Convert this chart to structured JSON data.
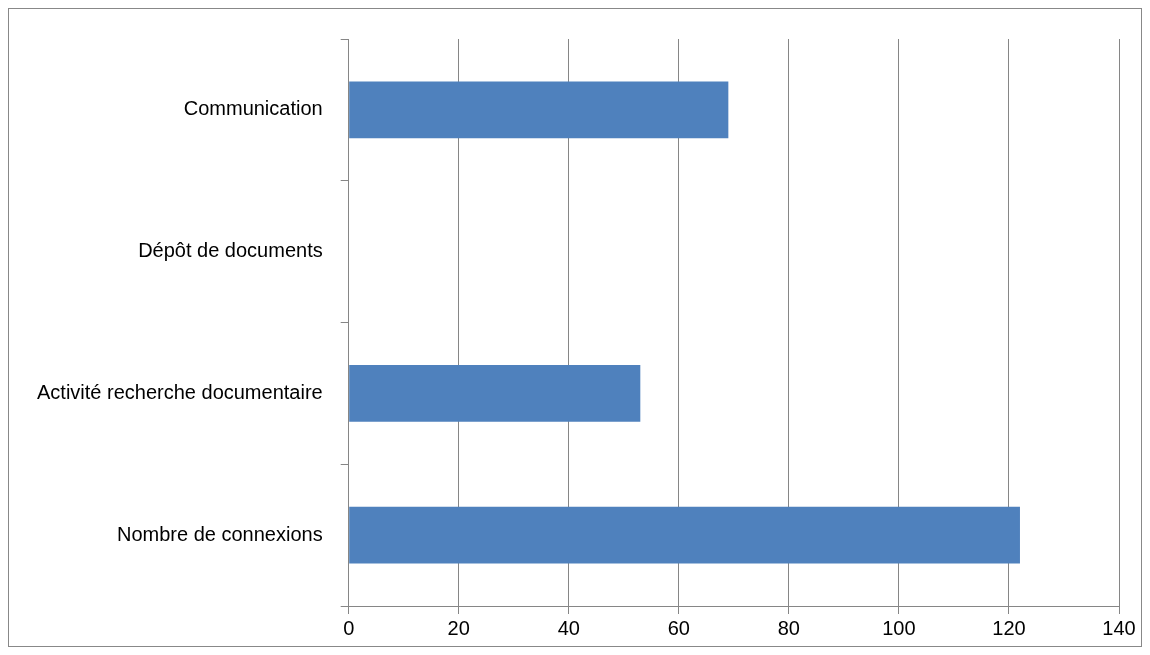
{
  "chart_data": {
    "type": "bar",
    "orientation": "horizontal",
    "categories": [
      "Communication",
      "Dépôt de documents",
      "Activité recherche documentaire",
      "Nombre de connexions"
    ],
    "values": [
      69,
      0,
      53,
      122
    ],
    "color": "#4f81bd",
    "xlim": [
      0,
      140
    ],
    "xticks": [
      0,
      20,
      40,
      60,
      80,
      100,
      120,
      140
    ],
    "grid": "x",
    "legend": false
  }
}
